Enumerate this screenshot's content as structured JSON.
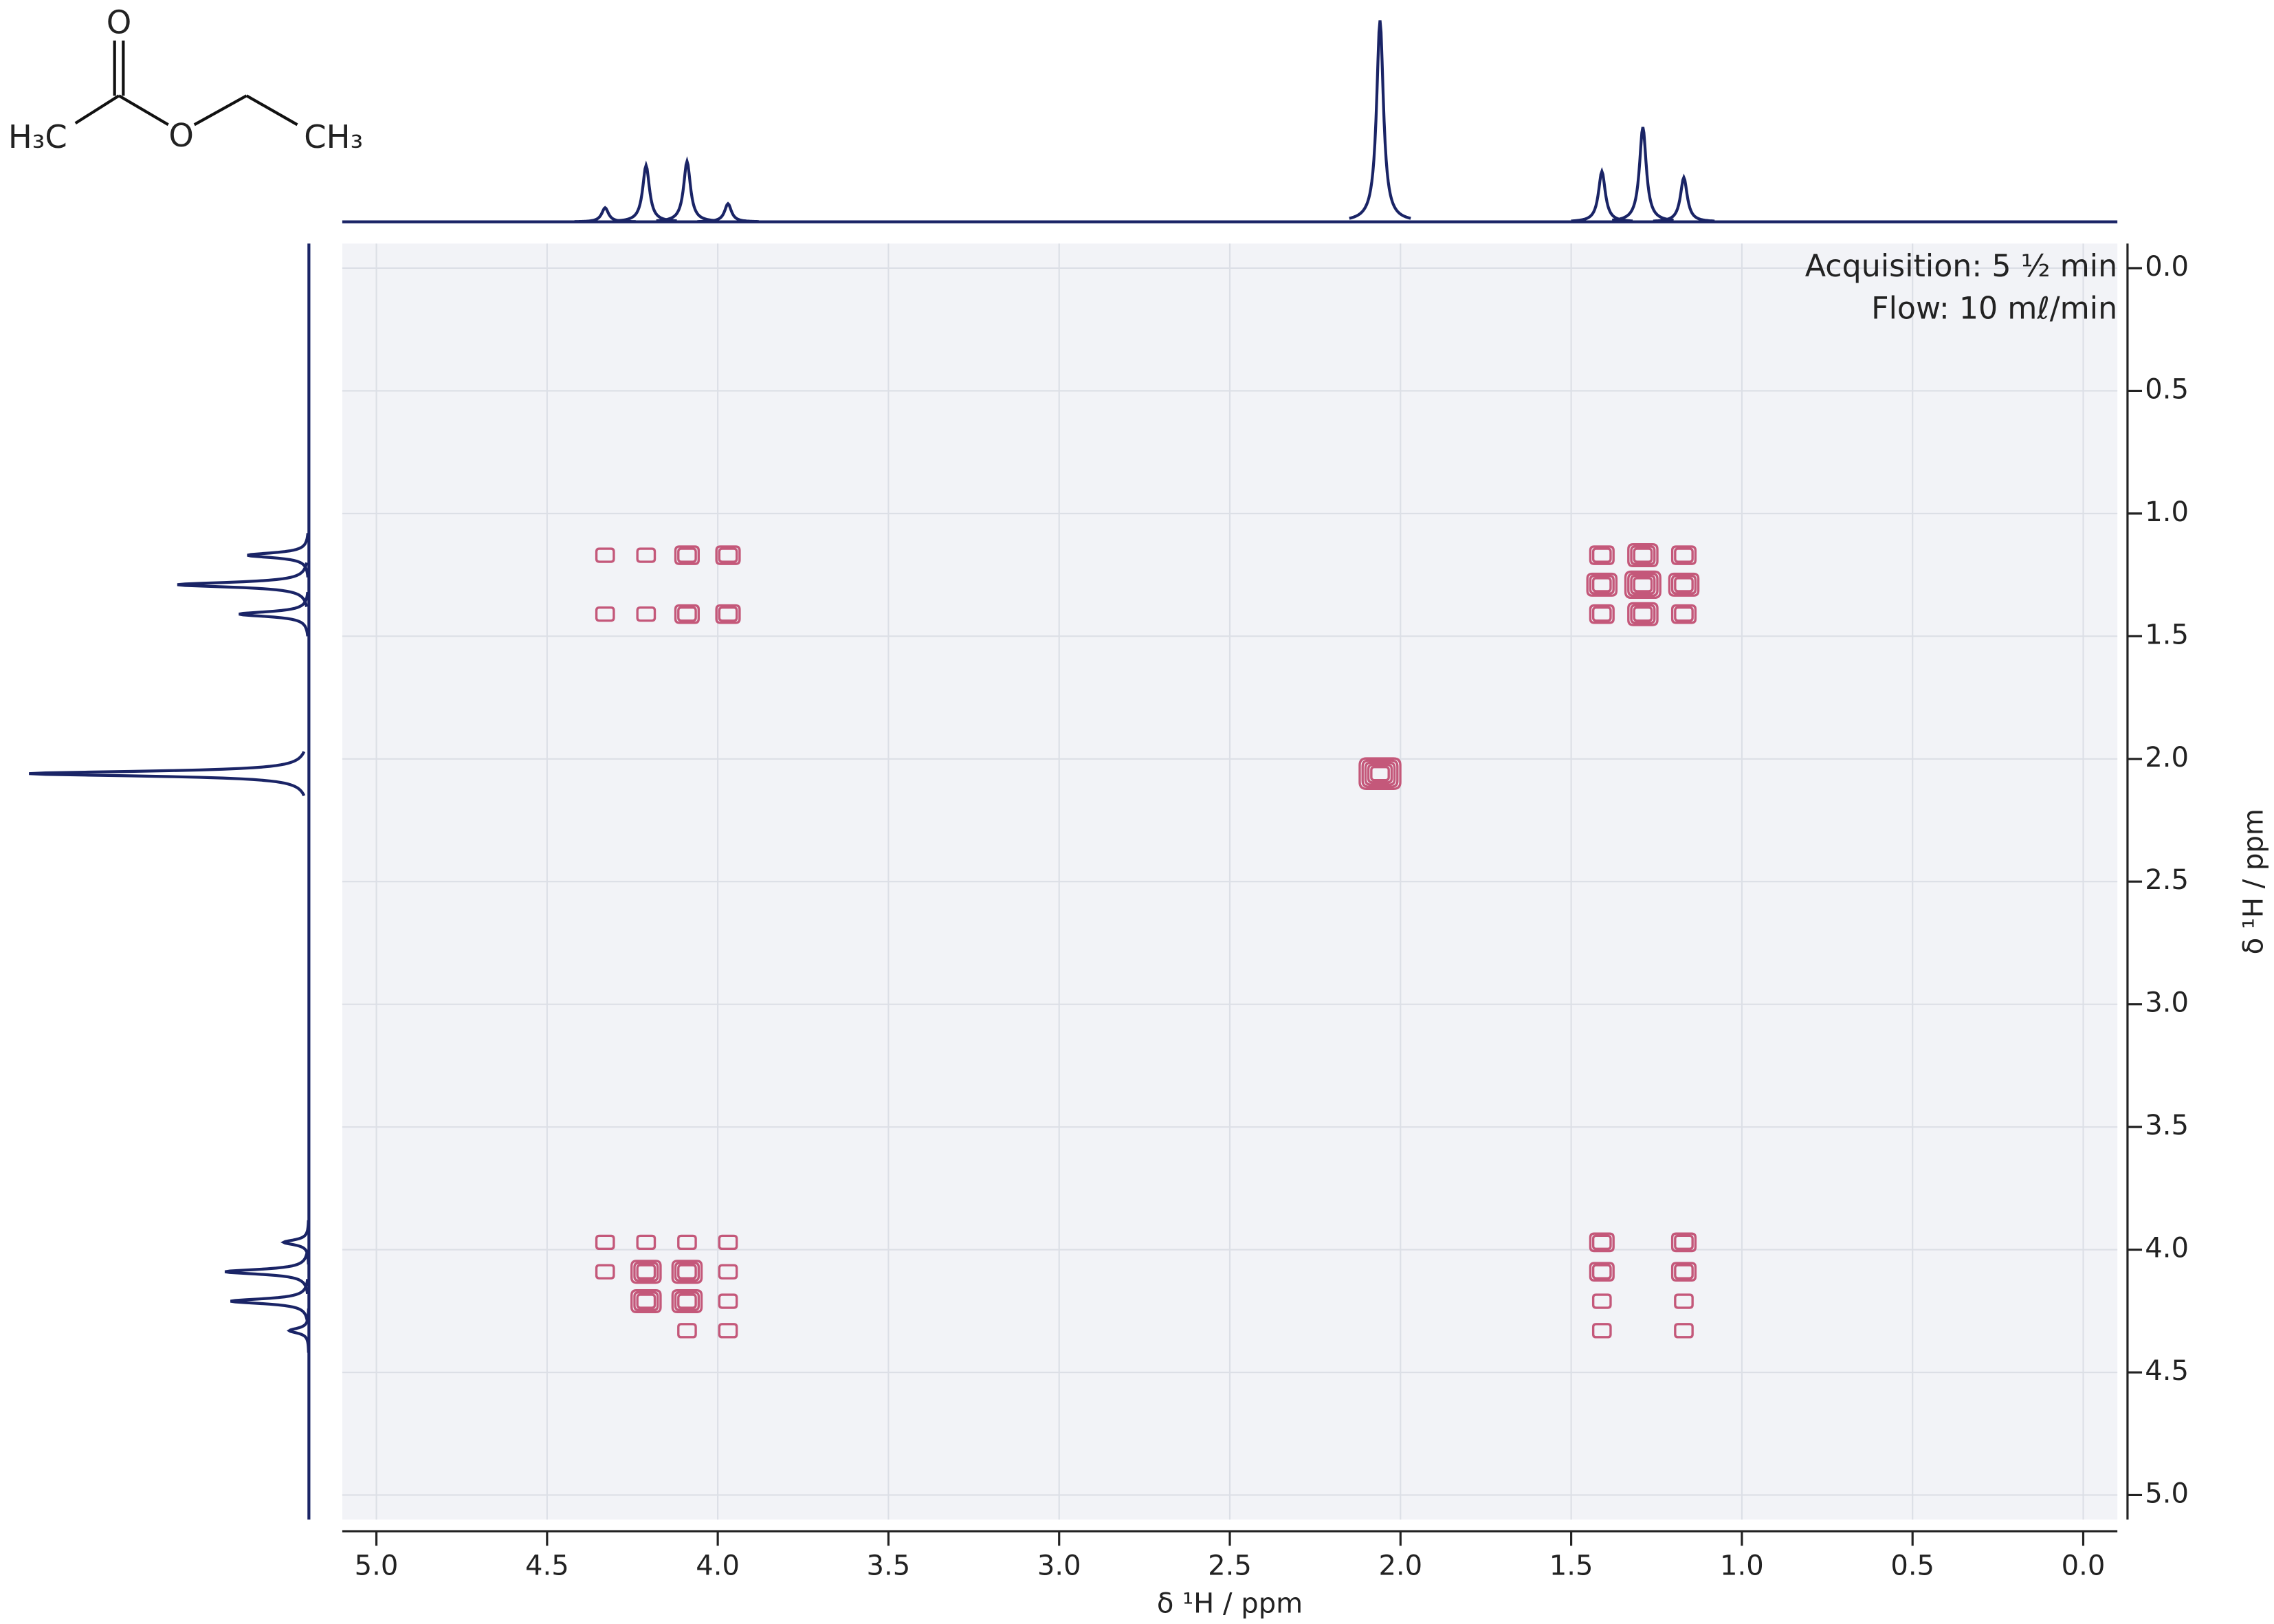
{
  "chart_data": {
    "type": "contour",
    "x_label": "δ ¹H / ppm",
    "y_label": "δ ¹H / ppm",
    "annotations": [
      "Acquisition: 5 ½ min",
      "Flow: 10 mℓ/min"
    ],
    "molecule": {
      "atoms": [
        "O",
        "H₃C",
        "O",
        "CH₃"
      ]
    },
    "xlim": [
      5.1,
      -0.1
    ],
    "ylim": [
      -0.1,
      5.1
    ],
    "xticks": [
      {
        "value": 5,
        "label": "5.0"
      },
      4.5,
      {
        "value": 4,
        "label": "4.0"
      },
      3.5,
      {
        "value": 3,
        "label": "3.0"
      },
      2.5,
      {
        "value": 2,
        "label": "2.0"
      },
      1.5,
      {
        "value": 1,
        "label": "1.0"
      },
      0.5,
      {
        "value": 0,
        "label": "0.0"
      }
    ],
    "yticks": [
      {
        "value": 0,
        "label": "0.0"
      },
      0.5,
      {
        "value": 1,
        "label": "1.0"
      },
      1.5,
      {
        "value": 2,
        "label": "2.0"
      },
      2.5,
      {
        "value": 3,
        "label": "3.0"
      },
      3.5,
      {
        "value": 4,
        "label": "4.0"
      },
      4.5,
      {
        "value": 5,
        "label": "5.0"
      }
    ],
    "grid": true,
    "contour_color": "#c4587a",
    "projection_color": "#1a2466",
    "x": [
      2.06,
      1.41,
      1.29,
      1.17,
      1.41,
      1.29,
      1.17,
      1.41,
      1.29,
      1.17,
      4.33,
      4.21,
      4.09,
      3.97,
      4.33,
      4.21,
      4.09,
      3.97,
      1.41,
      1.41,
      1.41,
      1.41,
      1.17,
      1.17,
      1.17,
      1.17,
      4.33,
      4.21,
      4.09,
      3.97,
      4.33,
      4.21,
      4.09,
      3.97,
      4.21,
      4.09,
      3.97,
      4.09,
      3.97
    ],
    "values": [
      2.06,
      1.17,
      1.17,
      1.17,
      1.29,
      1.29,
      1.29,
      1.41,
      1.41,
      1.41,
      1.17,
      1.17,
      1.17,
      1.17,
      1.41,
      1.41,
      1.41,
      1.41,
      3.97,
      4.09,
      4.21,
      4.33,
      3.97,
      4.09,
      4.21,
      4.33,
      3.97,
      3.97,
      3.97,
      3.97,
      4.09,
      4.09,
      4.09,
      4.09,
      4.21,
      4.21,
      4.21,
      4.33,
      4.33
    ],
    "levels": [
      5,
      2,
      3,
      2,
      3,
      4,
      3,
      2,
      3,
      2,
      1,
      1,
      2,
      2,
      1,
      1,
      2,
      2,
      2,
      2,
      1,
      1,
      2,
      2,
      1,
      1,
      1,
      1,
      1,
      1,
      1,
      3,
      3,
      1,
      3,
      3,
      1,
      1,
      1
    ],
    "projection": {
      "x": [
        4.33,
        4.21,
        4.09,
        3.97,
        2.06,
        1.41,
        1.29,
        1.17
      ],
      "values": [
        7,
        28,
        30,
        9,
        100,
        25,
        47,
        22
      ]
    }
  }
}
